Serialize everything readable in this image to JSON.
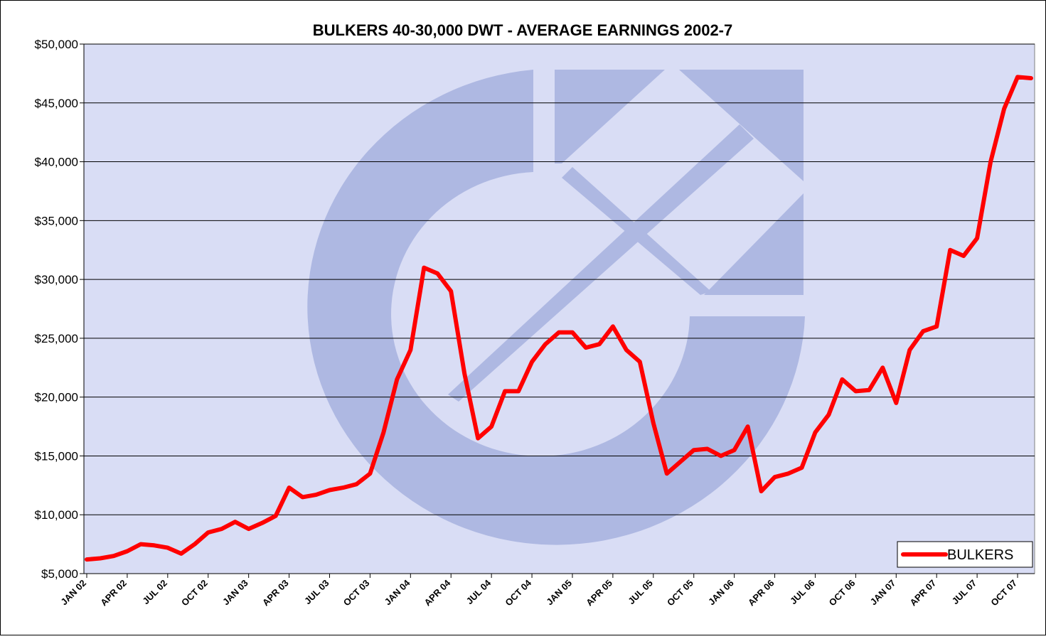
{
  "chart_data": {
    "type": "line",
    "title": "BULKERS 40-30,000 DWT - AVERAGE EARNINGS 2002-7",
    "categories": [
      "JAN 02",
      null,
      null,
      "APR 02",
      null,
      null,
      "JUL 02",
      null,
      null,
      "OCT 02",
      null,
      null,
      "JAN 03",
      null,
      null,
      "APR 03",
      null,
      null,
      "JUL 03",
      null,
      null,
      "OCT 03",
      null,
      null,
      "JAN 04",
      null,
      null,
      "APR 04",
      null,
      null,
      "JUL 04",
      null,
      null,
      "OCT 04",
      null,
      null,
      "JAN 05",
      null,
      null,
      "APR 05",
      null,
      null,
      "JUL 05",
      null,
      null,
      "OCT 05",
      null,
      null,
      "JAN 06",
      null,
      null,
      "APR 06",
      null,
      null,
      "JUL 06",
      null,
      null,
      "OCT 06",
      null,
      null,
      "JAN 07",
      null,
      null,
      "APR 07",
      null,
      null,
      "JUL 07",
      null,
      null,
      "OCT 07",
      null
    ],
    "series": [
      {
        "name": "BULKERS",
        "color": "#ff0000",
        "values": [
          6200,
          6300,
          6500,
          6900,
          7500,
          7400,
          7200,
          6700,
          7500,
          8500,
          8800,
          9400,
          8800,
          9300,
          9900,
          12300,
          11500,
          11700,
          12100,
          12300,
          12600,
          13500,
          17000,
          21500,
          24000,
          31000,
          30500,
          29000,
          22000,
          16500,
          17500,
          20500,
          20500,
          23000,
          24500,
          25500,
          25500,
          24200,
          24500,
          26000,
          24000,
          23000,
          17800,
          13500,
          14500,
          15500,
          15600,
          15000,
          15500,
          17500,
          12000,
          13200,
          13500,
          14000,
          17000,
          18500,
          21500,
          20500,
          20600,
          22500,
          19500,
          24000,
          25600,
          26000,
          32500,
          32000,
          33500,
          40000,
          44500,
          47200,
          47100
        ]
      }
    ],
    "ylim": [
      5000,
      50000
    ],
    "yticks": [
      {
        "value": 5000,
        "label": "$5,000"
      },
      {
        "value": 10000,
        "label": "$10,000"
      },
      {
        "value": 15000,
        "label": "$15,000"
      },
      {
        "value": 20000,
        "label": "$20,000"
      },
      {
        "value": 25000,
        "label": "$25,000"
      },
      {
        "value": 30000,
        "label": "$30,000"
      },
      {
        "value": 35000,
        "label": "$35,000"
      },
      {
        "value": 40000,
        "label": "$40,000"
      },
      {
        "value": 45000,
        "label": "$45,000"
      },
      {
        "value": 50000,
        "label": "$50,000"
      }
    ],
    "grid": true,
    "legend": "lower right"
  }
}
